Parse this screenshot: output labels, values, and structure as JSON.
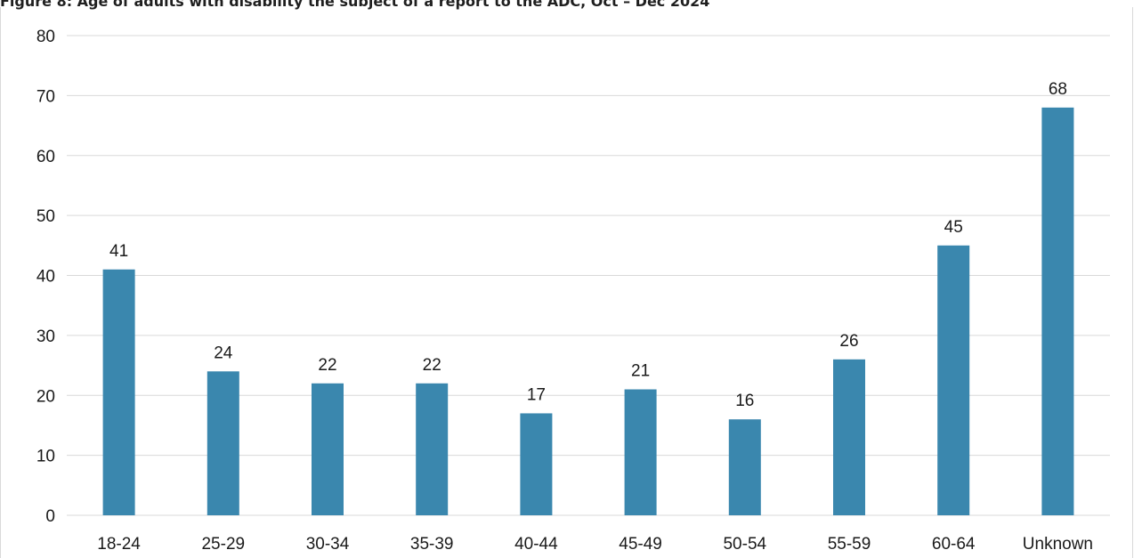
{
  "chart_data": {
    "type": "bar",
    "title": "Figure 8: Age of adults with disability the subject of a report to the ADC, Oct – Dec 2024",
    "xlabel": "",
    "ylabel": "",
    "categories": [
      "18-24",
      "25-29",
      "30-34",
      "35-39",
      "40-44",
      "45-49",
      "50-54",
      "55-59",
      "60-64",
      "Unknown"
    ],
    "values": [
      41,
      24,
      22,
      22,
      17,
      21,
      16,
      26,
      45,
      68
    ],
    "data_labels": [
      "41",
      "24",
      "22",
      "22",
      "17",
      "21",
      "16",
      "26",
      "45",
      "68"
    ],
    "ylim": [
      0,
      80
    ],
    "yticks": [
      "0",
      "10",
      "20",
      "30",
      "40",
      "50",
      "60",
      "70",
      "80"
    ],
    "grid": true,
    "legend": "none",
    "colors": {
      "bar": "#3a87ae",
      "grid": "#d9d9d9",
      "text": "#1a1a1a"
    }
  }
}
